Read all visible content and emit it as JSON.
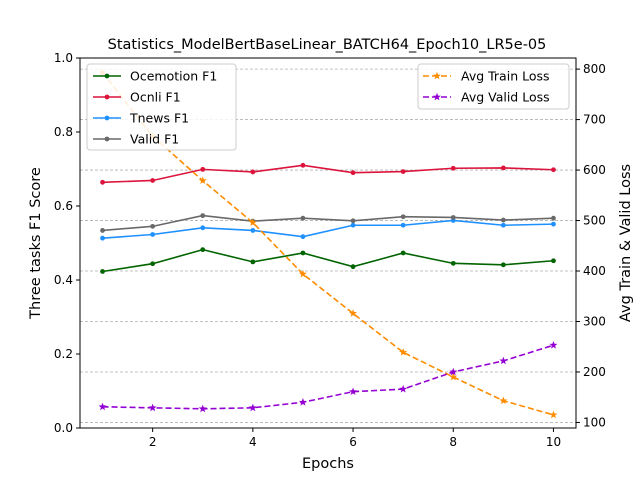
{
  "chart_data": {
    "type": "line",
    "title": "Statistics_ModelBertBaseLinear_BATCH64_Epoch10_LR5e-05",
    "xlabel": "Epochs",
    "ylabel_left": "Three tasks F1 Score",
    "ylabel_right": "Avg Train & Valid Loss",
    "x": [
      1,
      2,
      3,
      4,
      5,
      6,
      7,
      8,
      9,
      10
    ],
    "xticks": [
      2,
      4,
      6,
      8,
      10
    ],
    "xlim": [
      0.55,
      10.45
    ],
    "ylim_left": [
      0.0,
      1.0
    ],
    "yticks_left": [
      0.0,
      0.2,
      0.4,
      0.6,
      0.8,
      1.0
    ],
    "ylim_right": [
      89,
      822
    ],
    "yticks_right": [
      100,
      200,
      300,
      400,
      500,
      600,
      700,
      800
    ],
    "grid": "right-axis horizontal dashed",
    "left_series": [
      {
        "name": "Ocemotion F1",
        "color": "#006400",
        "marker": "dot",
        "values": [
          0.423,
          0.444,
          0.482,
          0.449,
          0.473,
          0.436,
          0.473,
          0.445,
          0.441,
          0.452
        ]
      },
      {
        "name": "Ocnli F1",
        "color": "#dc143c",
        "marker": "dot",
        "values": [
          0.664,
          0.669,
          0.699,
          0.692,
          0.71,
          0.69,
          0.693,
          0.702,
          0.703,
          0.698
        ]
      },
      {
        "name": "Tnews F1",
        "color": "#1e90ff",
        "marker": "dot",
        "values": [
          0.513,
          0.523,
          0.541,
          0.534,
          0.517,
          0.548,
          0.548,
          0.561,
          0.548,
          0.551
        ]
      },
      {
        "name": "Valid F1",
        "color": "#696969",
        "marker": "dot",
        "values": [
          0.534,
          0.545,
          0.574,
          0.559,
          0.567,
          0.56,
          0.571,
          0.569,
          0.562,
          0.567
        ]
      }
    ],
    "right_series": [
      {
        "name": "Avg Train Loss",
        "color": "#ff8c00",
        "marker": "star",
        "values": [
          793,
          667,
          579,
          496,
          394,
          316,
          239,
          190,
          143,
          115
        ]
      },
      {
        "name": "Avg Valid Loss",
        "color": "#9400d3",
        "marker": "star",
        "values": [
          131,
          129,
          127,
          129,
          140,
          161,
          166,
          200,
          222,
          253
        ]
      }
    ],
    "legend_left_placement": "top-left",
    "legend_right_placement": "top-right"
  }
}
